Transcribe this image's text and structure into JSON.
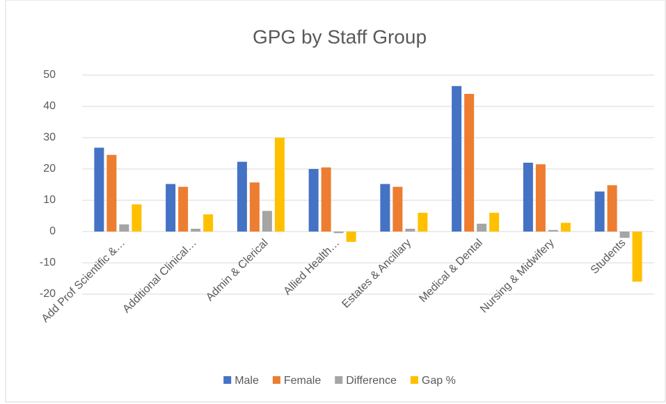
{
  "chart_data": {
    "type": "bar",
    "title": "GPG by Staff Group",
    "categories": [
      "Add Prof Scientific &…",
      "Additional Clinical…",
      "Admin & Clerical",
      "Allied Health…",
      "Estates & Ancillary",
      "Medical & Dental",
      "Nursing & Midwifery",
      "Students"
    ],
    "series": [
      {
        "name": "Male",
        "color": "#4472c4",
        "values": [
          26.8,
          15.2,
          22.3,
          20,
          15.2,
          46.5,
          22,
          12.8
        ]
      },
      {
        "name": "Female",
        "color": "#ed7d31",
        "values": [
          24.5,
          14.3,
          15.7,
          20.5,
          14.3,
          44,
          21.5,
          14.8
        ]
      },
      {
        "name": "Difference",
        "color": "#a5a5a5",
        "values": [
          2.3,
          0.9,
          6.6,
          -0.5,
          0.9,
          2.5,
          0.5,
          -2
        ]
      },
      {
        "name": "Gap %",
        "color": "#ffc000",
        "values": [
          8.7,
          5.5,
          30,
          -3.3,
          6,
          6,
          2.8,
          -16
        ]
      }
    ],
    "ylim": [
      -20,
      50
    ],
    "yticks": [
      -20,
      -10,
      0,
      10,
      20,
      30,
      40,
      50
    ],
    "grid": true,
    "legend": "bottom"
  }
}
